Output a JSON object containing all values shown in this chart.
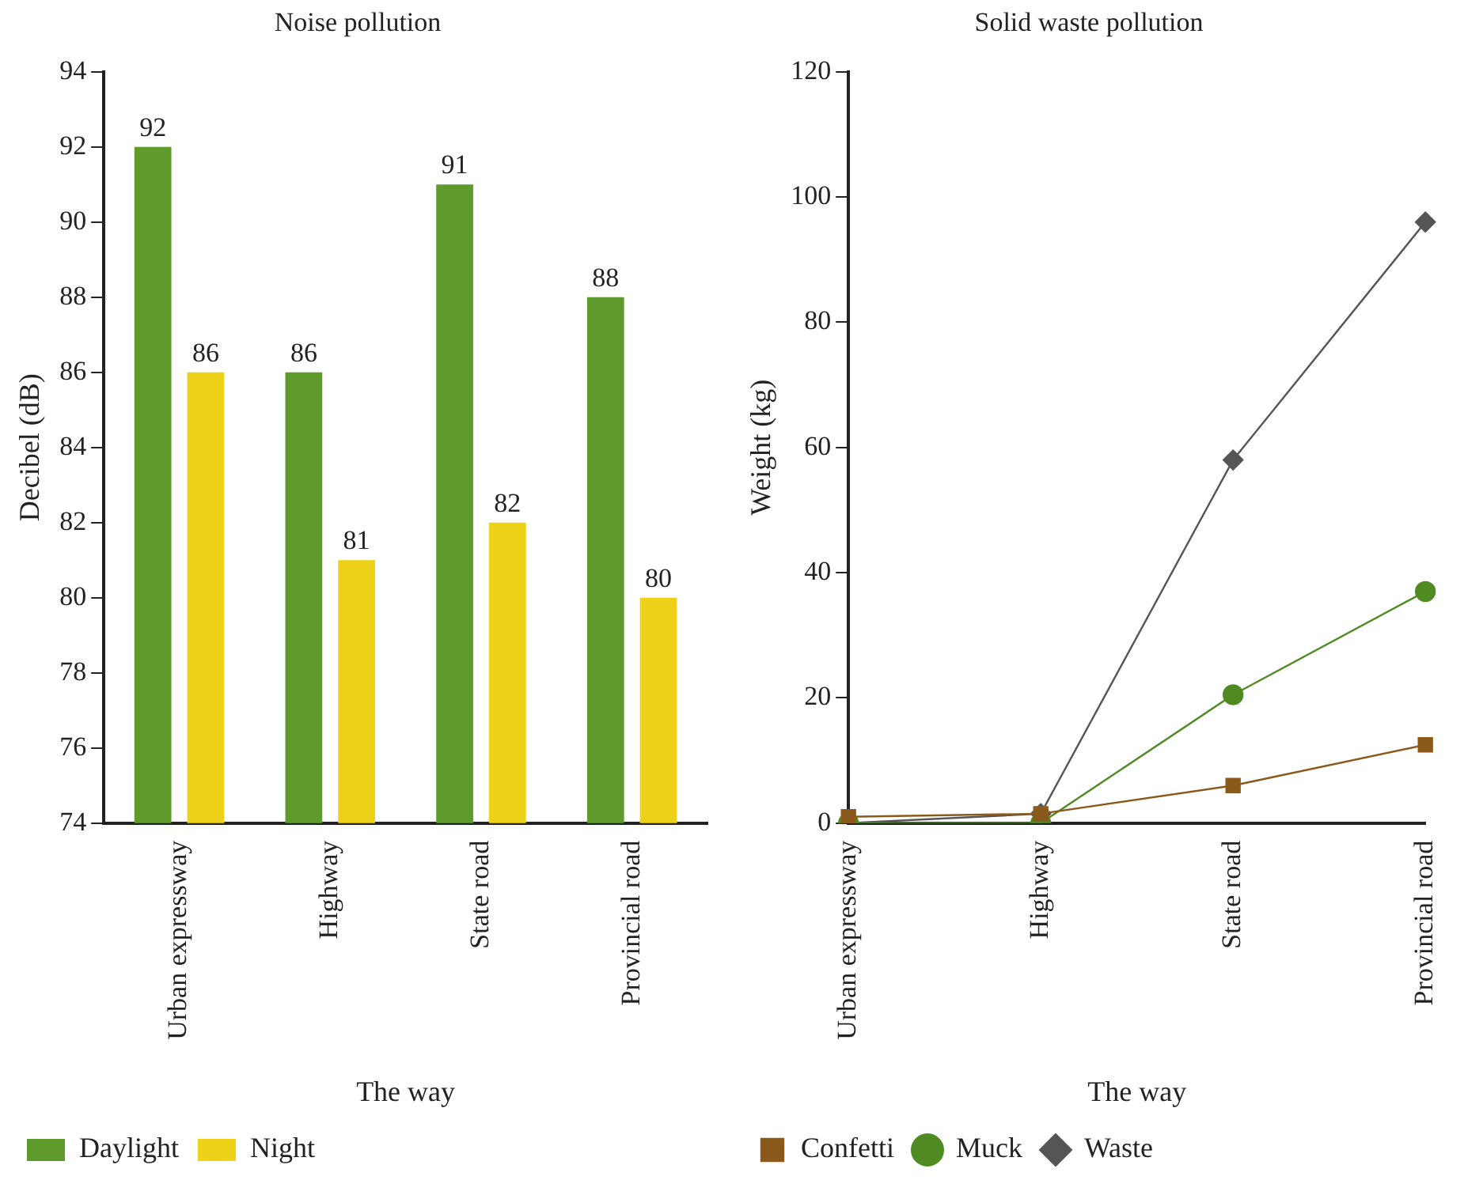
{
  "chart_data": [
    {
      "type": "bar",
      "title": "Noise pollution",
      "xlabel": "The way",
      "ylabel": "Decibel (dB)",
      "categories": [
        "Urban expressway",
        "Highway",
        "State road",
        "Provincial road"
      ],
      "series": [
        {
          "name": "Daylight",
          "color": "#5e9b2c",
          "values": [
            92,
            86,
            91,
            88
          ]
        },
        {
          "name": "Night",
          "color": "#eed21a",
          "values": [
            86,
            81,
            82,
            80
          ]
        }
      ],
      "ylim": [
        74,
        94
      ],
      "yticks": [
        74,
        76,
        78,
        80,
        82,
        84,
        86,
        88,
        90,
        92,
        94
      ],
      "grid": false,
      "legend": "bottom",
      "data_labels": true
    },
    {
      "type": "line",
      "title": "Solid waste pollution",
      "xlabel": "The way",
      "ylabel": "Weight (kg)",
      "categories": [
        "Urban expressway",
        "Highway",
        "State road",
        "Provincial road"
      ],
      "series": [
        {
          "name": "Confetti",
          "color": "#8b5a1a",
          "marker": "square",
          "values": [
            1,
            1.5,
            6,
            12.5
          ]
        },
        {
          "name": "Muck",
          "color": "#4f8a23",
          "marker": "circle",
          "values": [
            0,
            0,
            20.5,
            37
          ]
        },
        {
          "name": "Waste",
          "color": "#555555",
          "marker": "diamond",
          "values": [
            0,
            1.5,
            58,
            96
          ]
        }
      ],
      "ylim": [
        0,
        120
      ],
      "yticks": [
        0,
        20,
        40,
        60,
        80,
        100,
        120
      ],
      "grid": false,
      "legend": "bottom"
    }
  ]
}
